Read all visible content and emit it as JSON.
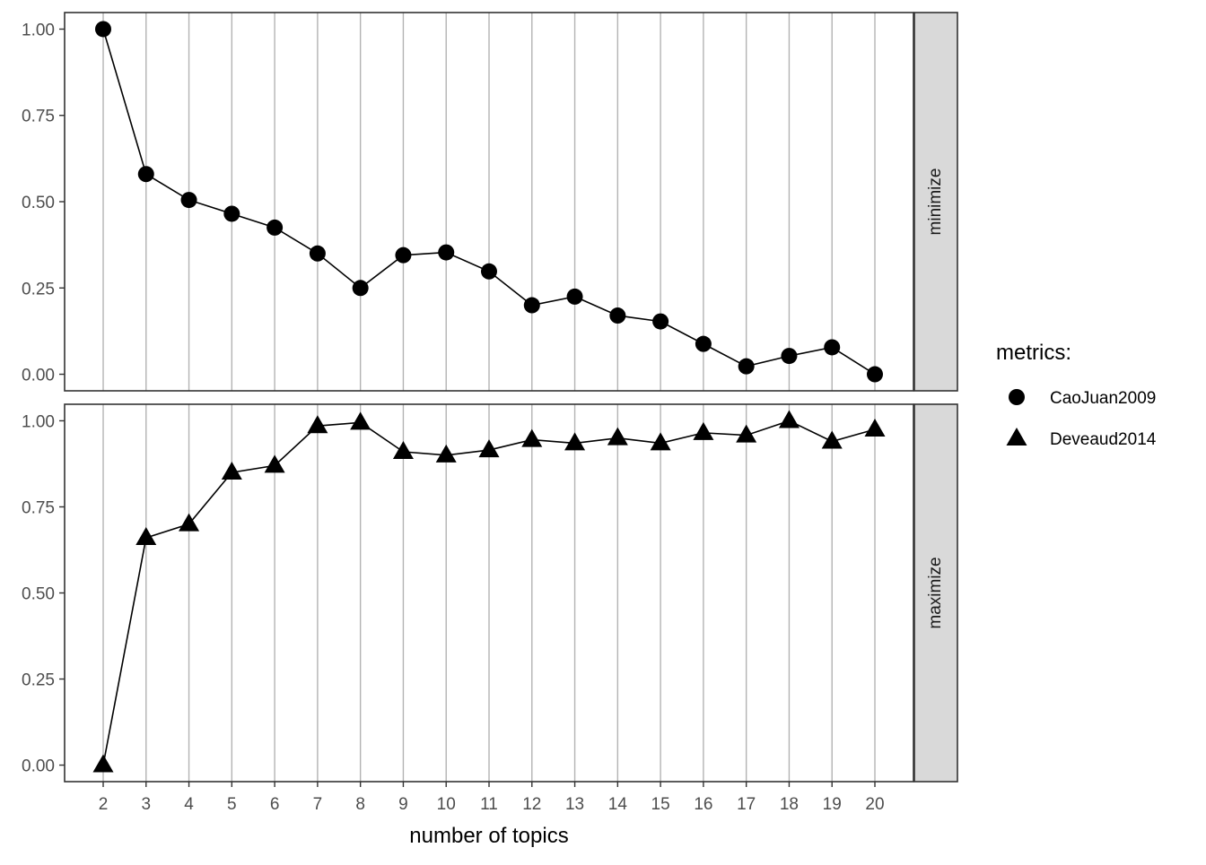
{
  "chart_data": {
    "type": "line",
    "xlabel": "number of topics",
    "ylabel": "",
    "x": [
      2,
      3,
      4,
      5,
      6,
      7,
      8,
      9,
      10,
      11,
      12,
      13,
      14,
      15,
      16,
      17,
      18,
      19,
      20
    ],
    "ylim": [
      0,
      1
    ],
    "yticks": [
      "0.00",
      "0.25",
      "0.50",
      "0.75",
      "1.00"
    ],
    "grid": "vertical major lines",
    "legend": {
      "title": "metrics:",
      "placement": "right",
      "entries": [
        {
          "label": "CaoJuan2009",
          "shape": "circle"
        },
        {
          "label": "Deveaud2014",
          "shape": "triangle"
        }
      ]
    },
    "facets": [
      {
        "strip": "minimize",
        "series": [
          {
            "name": "CaoJuan2009",
            "shape": "circle",
            "values": [
              1.0,
              0.58,
              0.505,
              0.465,
              0.425,
              0.35,
              0.25,
              0.345,
              0.353,
              0.298,
              0.2,
              0.225,
              0.17,
              0.153,
              0.088,
              0.023,
              0.053,
              0.078,
              0.0
            ]
          }
        ]
      },
      {
        "strip": "maximize",
        "series": [
          {
            "name": "Deveaud2014",
            "shape": "triangle",
            "values": [
              0.0,
              0.66,
              0.7,
              0.85,
              0.87,
              0.985,
              0.995,
              0.91,
              0.9,
              0.915,
              0.945,
              0.935,
              0.95,
              0.935,
              0.965,
              0.958,
              1.0,
              0.94,
              0.975
            ]
          }
        ]
      }
    ],
    "colors": {
      "points": "#000000",
      "grid": "#b3b3b3",
      "strip_fill": "#d9d9d9",
      "panel_border": "#333333"
    }
  }
}
